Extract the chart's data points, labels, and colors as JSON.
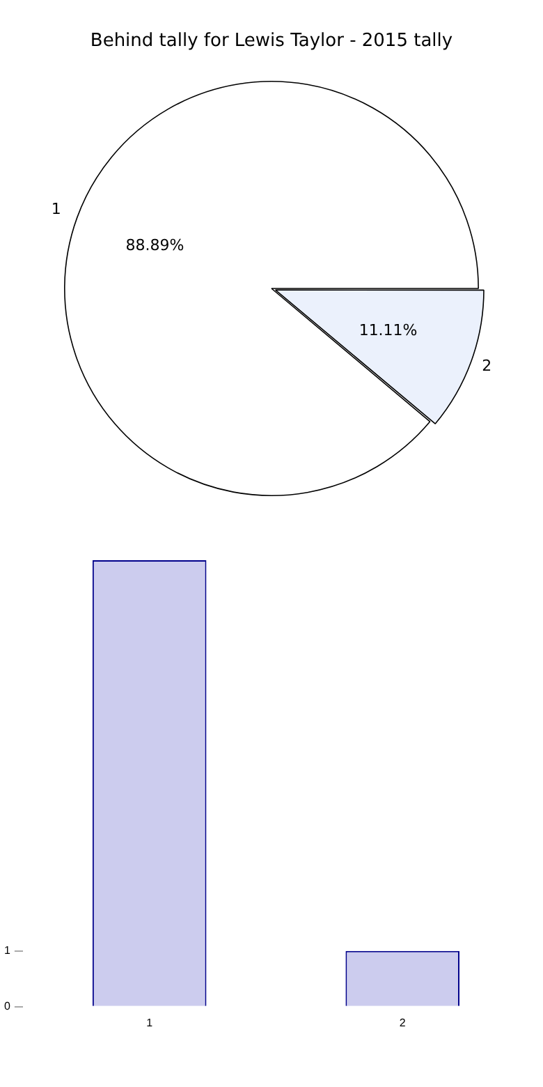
{
  "chart_data": [
    {
      "type": "pie",
      "title": "Behind tally for Lewis Taylor - 2015 tally",
      "categories": [
        "1",
        "2"
      ],
      "values": [
        88.89,
        11.11
      ],
      "colors": [
        "#ffffff",
        "#ebf1fc"
      ],
      "value_labels": [
        "88.89%",
        "11.11%"
      ],
      "legend": false
    },
    {
      "type": "bar",
      "categories": [
        "1",
        "2"
      ],
      "values": [
        8,
        1
      ],
      "color": "#ccccee",
      "ylim": [
        0,
        8
      ],
      "yticks": [
        0,
        1
      ],
      "grid": false,
      "legend": false
    }
  ]
}
